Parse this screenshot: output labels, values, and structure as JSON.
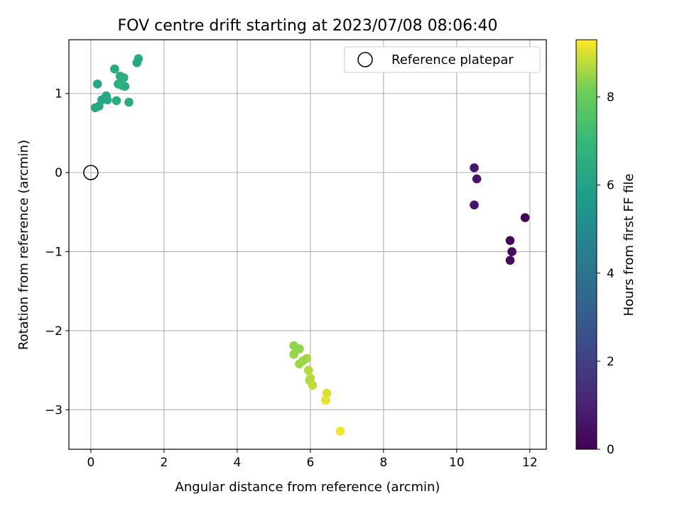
{
  "chart_data": {
    "type": "scatter",
    "title": "FOV centre drift starting at 2023/07/08 08:06:40",
    "xlabel": "Angular distance from reference (arcmin)",
    "ylabel": "Rotation from reference (arcmin)",
    "xlim": [
      -0.6,
      12.45
    ],
    "ylim": [
      -3.5,
      1.68
    ],
    "xticks": [
      0,
      2,
      4,
      6,
      8,
      10,
      12
    ],
    "yticks": [
      -3,
      -2,
      -1,
      0,
      1
    ],
    "grid": true,
    "legend": {
      "position": "top-right",
      "entries": [
        "Reference platepar"
      ]
    },
    "reference": {
      "name": "Reference platepar",
      "x": 0,
      "y": 0
    },
    "colorbar": {
      "label": "Hours from first FF file",
      "colormap": "viridis",
      "range": [
        0,
        9.3
      ],
      "ticks": [
        0,
        2,
        4,
        6,
        8
      ]
    },
    "points": [
      {
        "x": 10.48,
        "y": 0.06,
        "c": 0.7
      },
      {
        "x": 10.55,
        "y": -0.08,
        "c": 0.6
      },
      {
        "x": 10.48,
        "y": -0.41,
        "c": 0.6
      },
      {
        "x": 11.87,
        "y": -0.57,
        "c": 0.1
      },
      {
        "x": 11.46,
        "y": -0.86,
        "c": 0.2
      },
      {
        "x": 11.51,
        "y": -1.0,
        "c": 0.2
      },
      {
        "x": 11.46,
        "y": -1.11,
        "c": 0.2
      },
      {
        "x": 0.65,
        "y": 1.31,
        "c": 6.4
      },
      {
        "x": 1.3,
        "y": 1.44,
        "c": 6.4
      },
      {
        "x": 1.26,
        "y": 1.39,
        "c": 6.3
      },
      {
        "x": 0.18,
        "y": 1.12,
        "c": 6.2
      },
      {
        "x": 0.8,
        "y": 1.22,
        "c": 6.5
      },
      {
        "x": 0.9,
        "y": 1.2,
        "c": 6.6
      },
      {
        "x": 0.75,
        "y": 1.12,
        "c": 6.4
      },
      {
        "x": 0.85,
        "y": 1.1,
        "c": 6.8
      },
      {
        "x": 0.93,
        "y": 1.09,
        "c": 6.5
      },
      {
        "x": 0.42,
        "y": 0.97,
        "c": 6.3
      },
      {
        "x": 0.3,
        "y": 0.92,
        "c": 6.3
      },
      {
        "x": 0.45,
        "y": 0.92,
        "c": 6.3
      },
      {
        "x": 0.7,
        "y": 0.91,
        "c": 6.5
      },
      {
        "x": 1.04,
        "y": 0.89,
        "c": 6.4
      },
      {
        "x": 0.22,
        "y": 0.84,
        "c": 6.2
      },
      {
        "x": 0.12,
        "y": 0.82,
        "c": 6.3
      },
      {
        "x": 5.55,
        "y": -2.19,
        "c": 8.4
      },
      {
        "x": 5.7,
        "y": -2.23,
        "c": 8.4
      },
      {
        "x": 5.55,
        "y": -2.3,
        "c": 8.5
      },
      {
        "x": 5.9,
        "y": -2.35,
        "c": 8.6
      },
      {
        "x": 5.8,
        "y": -2.38,
        "c": 8.5
      },
      {
        "x": 5.7,
        "y": -2.42,
        "c": 8.5
      },
      {
        "x": 5.95,
        "y": -2.5,
        "c": 8.7
      },
      {
        "x": 6.0,
        "y": -2.6,
        "c": 8.8
      },
      {
        "x": 5.98,
        "y": -2.63,
        "c": 8.7
      },
      {
        "x": 6.06,
        "y": -2.69,
        "c": 8.8
      },
      {
        "x": 6.45,
        "y": -2.79,
        "c": 9.0
      },
      {
        "x": 6.42,
        "y": -2.88,
        "c": 9.1
      },
      {
        "x": 6.82,
        "y": -3.27,
        "c": 9.2
      }
    ]
  }
}
